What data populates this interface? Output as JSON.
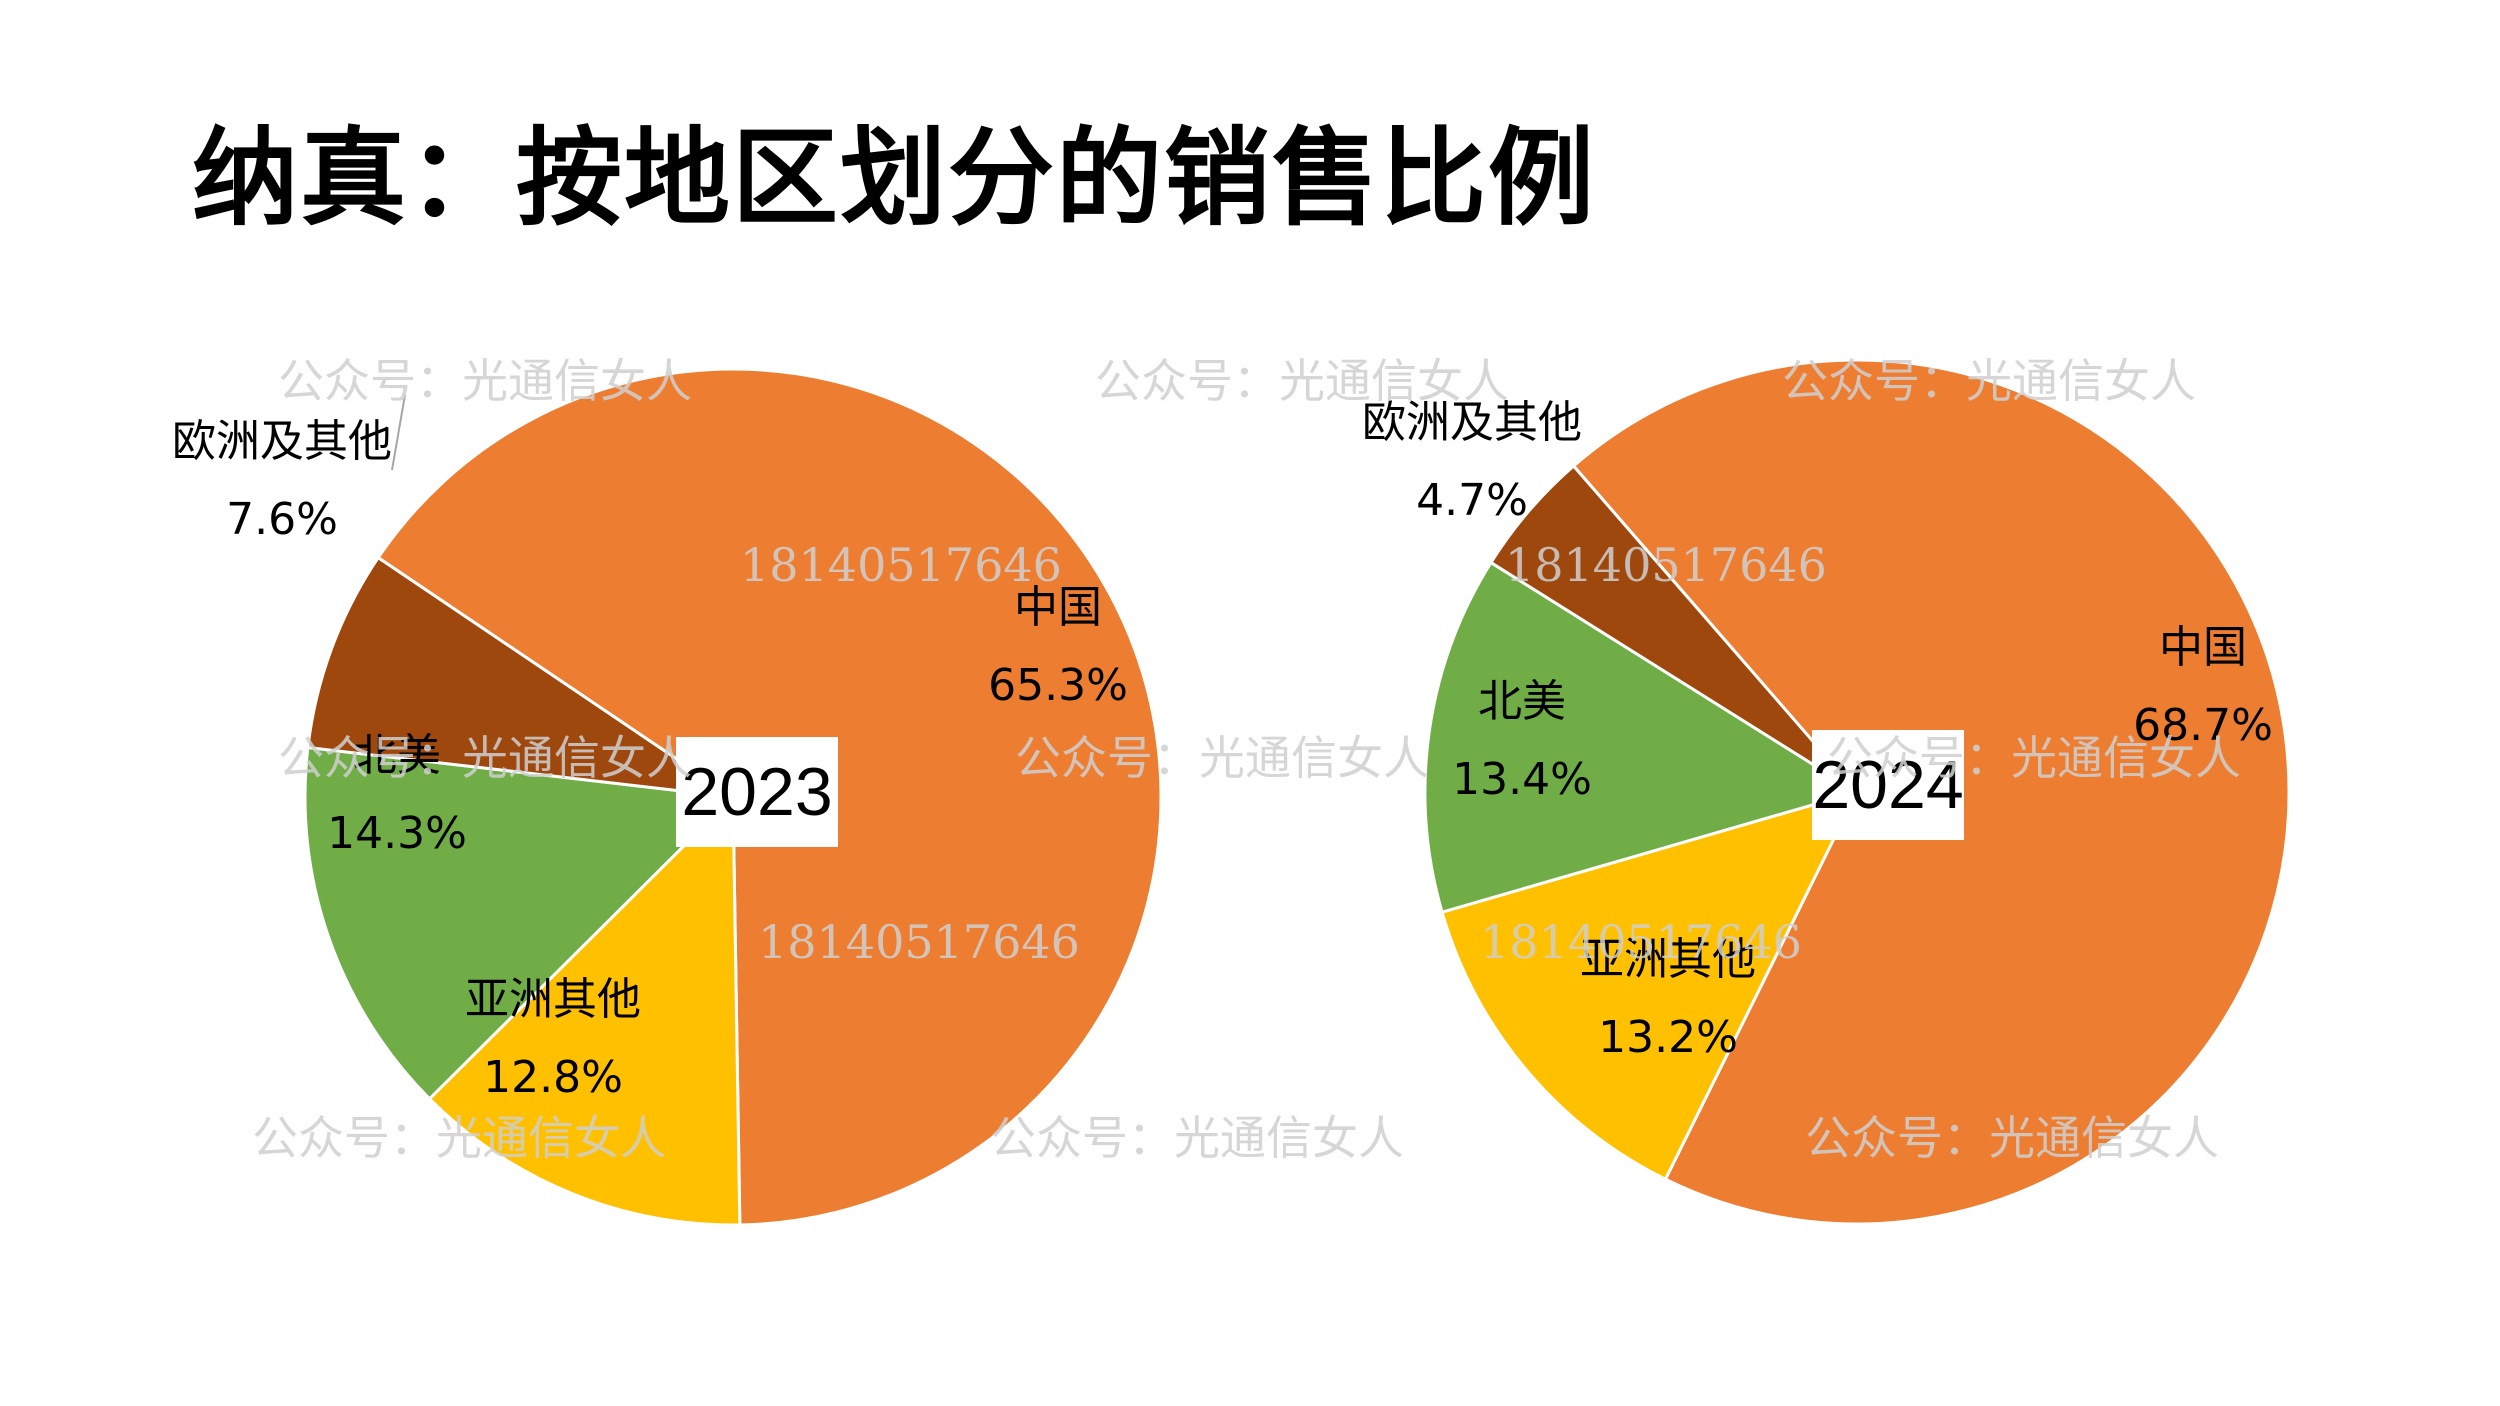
{
  "title": "纳真：按地区划分的销售比例",
  "chart_data": [
    {
      "type": "pie",
      "year_label": "2023",
      "slices": [
        {
          "name": "中国",
          "label": "65.3%",
          "value": 65.3,
          "color": "#ED7D31"
        },
        {
          "name": "亚洲其他",
          "label": "12.8%",
          "value": 12.8,
          "color": "#FFC000"
        },
        {
          "name": "北美",
          "label": "14.3%",
          "value": 14.3,
          "color": "#70AD47"
        },
        {
          "name": "欧洲及其他",
          "label": "7.6%",
          "value": 7.6,
          "color": "#9E480E"
        }
      ]
    },
    {
      "type": "pie",
      "year_label": "2024",
      "slices": [
        {
          "name": "中国",
          "label": "68.7%",
          "value": 68.7,
          "color": "#ED7D31"
        },
        {
          "name": "亚洲其他",
          "label": "13.2%",
          "value": 13.2,
          "color": "#FFC000"
        },
        {
          "name": "北美",
          "label": "13.4%",
          "value": 13.4,
          "color": "#70AD47"
        },
        {
          "name": "欧洲及其他",
          "label": "4.7%",
          "value": 4.7,
          "color": "#9E480E"
        }
      ]
    }
  ],
  "watermark": {
    "brand": "公众号：光通信女人",
    "phone": "18140517646"
  }
}
